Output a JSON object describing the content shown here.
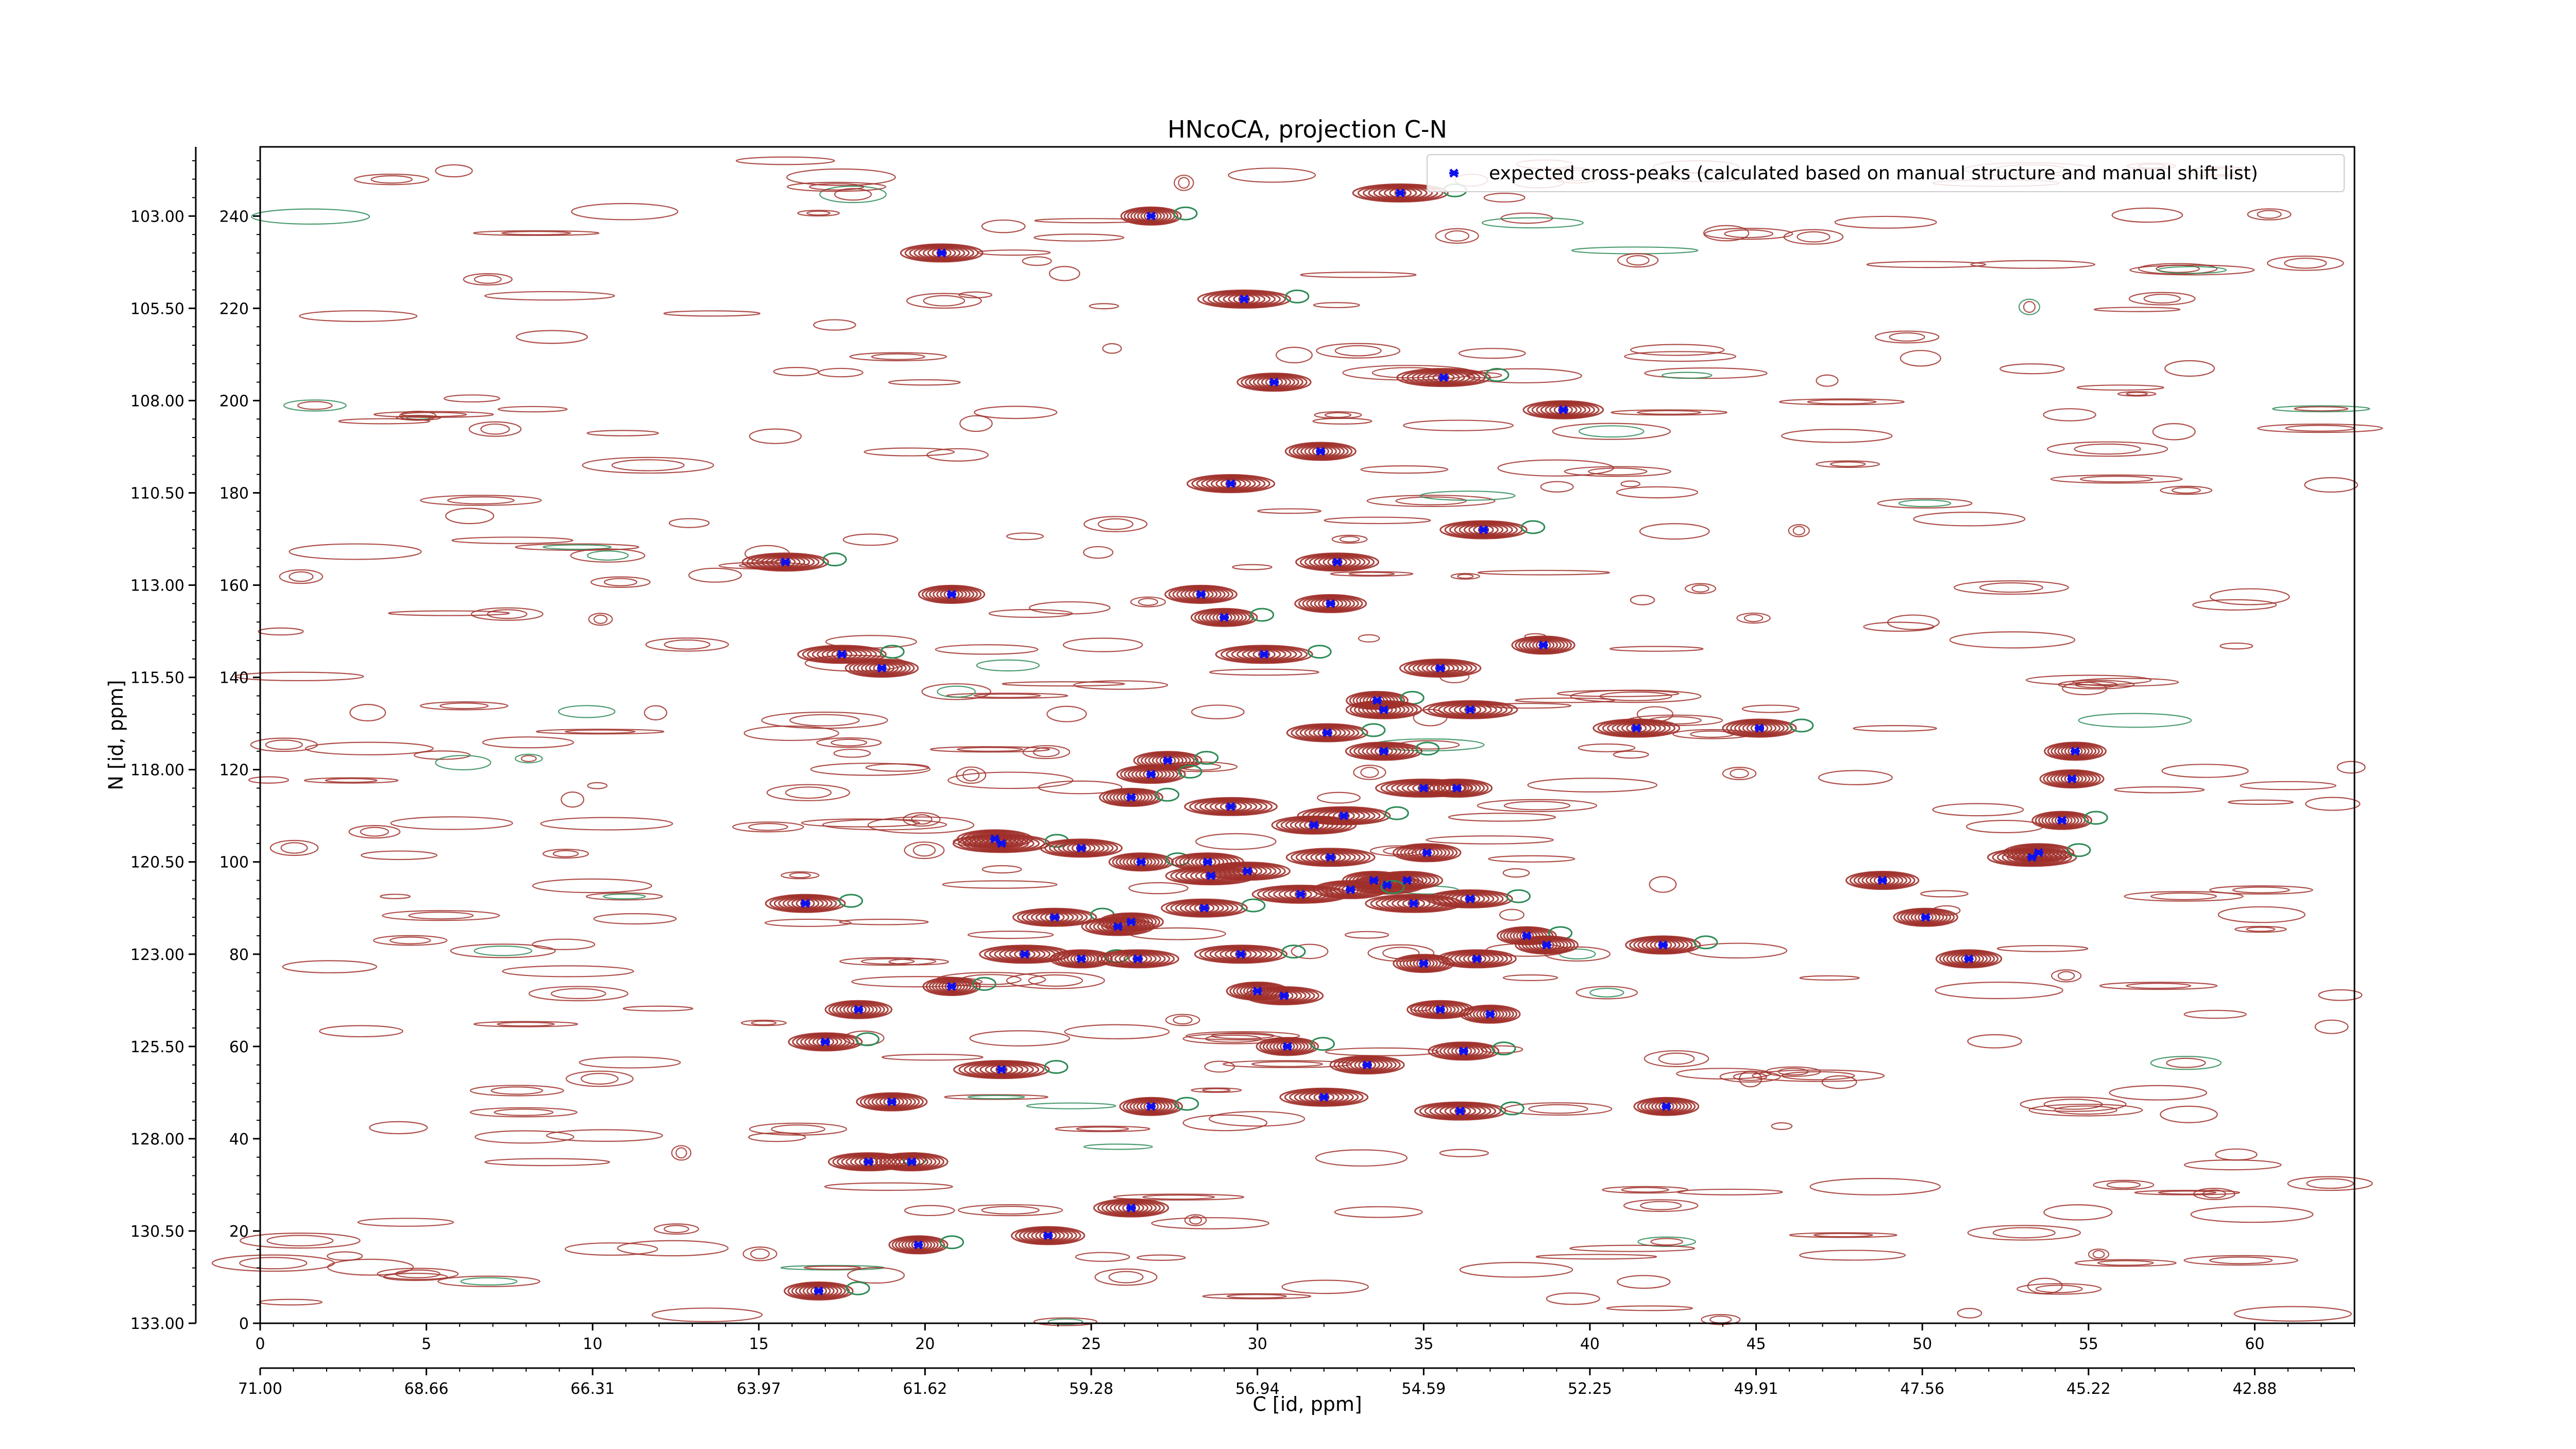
{
  "chart_data": {
    "type": "scatter",
    "title": "HNcoCA, projection C-N",
    "xlabel": "C [id, ppm]",
    "ylabel": "N [id, ppm]",
    "xlim": [
      0,
      63
    ],
    "ylim": [
      0,
      255
    ],
    "x_ticks": [
      0,
      5,
      10,
      15,
      20,
      25,
      30,
      35,
      40,
      45,
      50,
      55,
      60
    ],
    "y_ticks": [
      0,
      20,
      40,
      60,
      80,
      100,
      120,
      140,
      160,
      180,
      200,
      220,
      240
    ],
    "x_ppm_tick_labels": [
      "71.00",
      "68.66",
      "66.31",
      "63.97",
      "61.62",
      "59.28",
      "56.94",
      "54.59",
      "52.25",
      "49.91",
      "47.56",
      "45.22",
      "42.88"
    ],
    "y_ppm_tick_labels": [
      "133.00",
      "130.50",
      "128.00",
      "125.50",
      "123.00",
      "120.50",
      "118.00",
      "115.50",
      "113.00",
      "110.50",
      "108.00",
      "105.50",
      "103.00"
    ],
    "legend": {
      "label": "expected cross-peaks (calculated based on manual structure and manual shift list)",
      "position": "top-right",
      "marker_color": "#1010ee"
    },
    "colors": {
      "positive_contour": "#a0302a",
      "negative_contour": "#2e8b57",
      "peak_marker": "#1010ee"
    },
    "series": [
      {
        "name": "expected cross-peaks (calculated based on manual structure and manual shift list)",
        "points": [
          [
            34.3,
            245
          ],
          [
            26.8,
            240
          ],
          [
            20.5,
            232
          ],
          [
            29.6,
            222
          ],
          [
            30.5,
            204
          ],
          [
            35.6,
            205
          ],
          [
            39.2,
            198
          ],
          [
            31.9,
            189
          ],
          [
            29.2,
            182
          ],
          [
            36.8,
            172
          ],
          [
            15.8,
            165
          ],
          [
            20.8,
            158
          ],
          [
            32.4,
            165
          ],
          [
            28.3,
            158
          ],
          [
            29.0,
            153
          ],
          [
            32.2,
            156
          ],
          [
            38.6,
            147
          ],
          [
            17.5,
            145
          ],
          [
            18.7,
            142
          ],
          [
            30.2,
            145
          ],
          [
            35.5,
            142
          ],
          [
            33.6,
            135
          ],
          [
            33.8,
            133
          ],
          [
            36.4,
            133
          ],
          [
            41.4,
            129
          ],
          [
            45.1,
            129
          ],
          [
            32.1,
            128
          ],
          [
            33.8,
            124
          ],
          [
            54.6,
            124
          ],
          [
            27.3,
            122
          ],
          [
            26.8,
            119
          ],
          [
            54.5,
            118
          ],
          [
            29.2,
            112
          ],
          [
            26.2,
            114
          ],
          [
            35.0,
            116
          ],
          [
            36.0,
            116
          ],
          [
            32.6,
            110
          ],
          [
            31.7,
            108
          ],
          [
            54.2,
            109
          ],
          [
            22.1,
            105
          ],
          [
            22.3,
            104
          ],
          [
            24.7,
            103
          ],
          [
            26.5,
            100
          ],
          [
            28.5,
            100
          ],
          [
            28.6,
            97
          ],
          [
            29.7,
            98
          ],
          [
            32.2,
            101
          ],
          [
            35.1,
            102
          ],
          [
            53.3,
            101
          ],
          [
            53.5,
            102
          ],
          [
            33.5,
            96
          ],
          [
            33.9,
            95
          ],
          [
            34.5,
            96
          ],
          [
            31.3,
            93
          ],
          [
            32.8,
            94
          ],
          [
            34.7,
            91
          ],
          [
            36.4,
            92
          ],
          [
            16.4,
            91
          ],
          [
            48.8,
            96
          ],
          [
            50.1,
            88
          ],
          [
            23.9,
            88
          ],
          [
            25.8,
            86
          ],
          [
            26.2,
            87
          ],
          [
            28.4,
            90
          ],
          [
            38.1,
            84
          ],
          [
            38.7,
            82
          ],
          [
            42.2,
            82
          ],
          [
            23.0,
            80
          ],
          [
            24.7,
            79
          ],
          [
            26.4,
            79
          ],
          [
            29.5,
            80
          ],
          [
            35.0,
            78
          ],
          [
            36.6,
            79
          ],
          [
            51.4,
            79
          ],
          [
            20.8,
            73
          ],
          [
            30.0,
            72
          ],
          [
            30.8,
            71
          ],
          [
            18.0,
            68
          ],
          [
            35.5,
            68
          ],
          [
            37.0,
            67
          ],
          [
            17.0,
            61
          ],
          [
            30.9,
            60
          ],
          [
            36.2,
            59
          ],
          [
            22.3,
            55
          ],
          [
            33.3,
            56
          ],
          [
            19.0,
            48
          ],
          [
            26.8,
            47
          ],
          [
            32.0,
            49
          ],
          [
            36.1,
            46
          ],
          [
            42.3,
            47
          ],
          [
            18.3,
            35
          ],
          [
            19.6,
            35
          ],
          [
            26.2,
            25
          ],
          [
            23.7,
            19
          ],
          [
            19.8,
            17
          ],
          [
            16.8,
            7
          ]
        ]
      }
    ]
  }
}
